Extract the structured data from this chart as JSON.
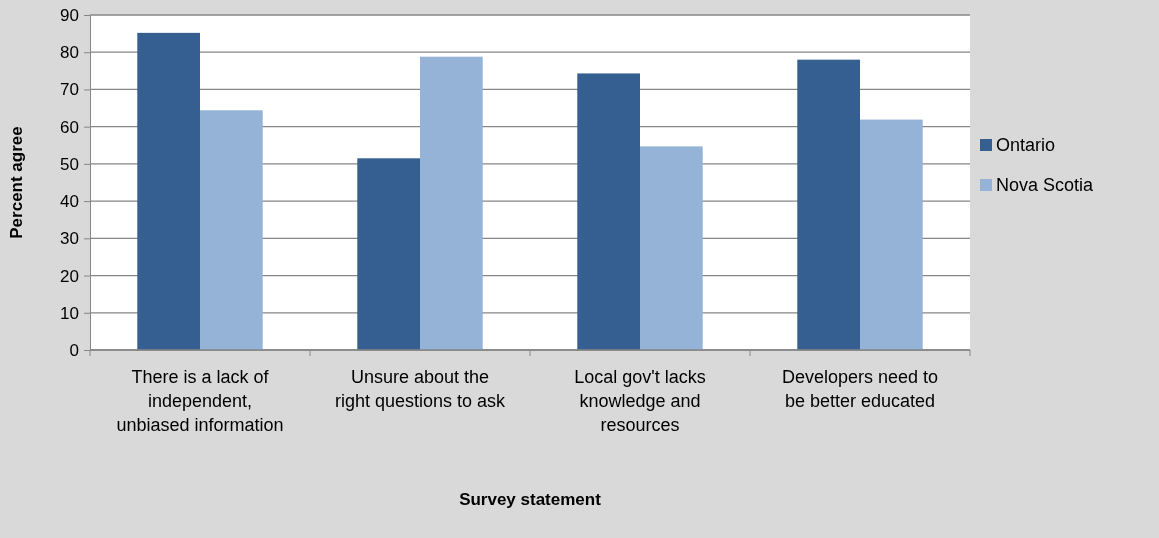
{
  "chart_data": {
    "type": "bar",
    "xlabel": "Survey statement",
    "ylabel": "Percent agree",
    "categories": [
      "There is a lack of independent, unbiased information",
      "Unsure about the right questions to ask",
      "Local gov't lacks knowledge and resources",
      "Developers need to be better educated"
    ],
    "series": [
      {
        "name": "Ontario",
        "color": "#365f91",
        "values": [
          85.2,
          51.5,
          74.3,
          78.0
        ]
      },
      {
        "name": "Nova Scotia",
        "color": "#95b3d7",
        "values": [
          64.4,
          78.8,
          54.7,
          61.9
        ]
      }
    ],
    "ylim": [
      0,
      90
    ],
    "yticks": [
      0,
      10,
      20,
      30,
      40,
      50,
      60,
      70,
      80,
      90
    ],
    "grid": "y",
    "legend": "right"
  }
}
